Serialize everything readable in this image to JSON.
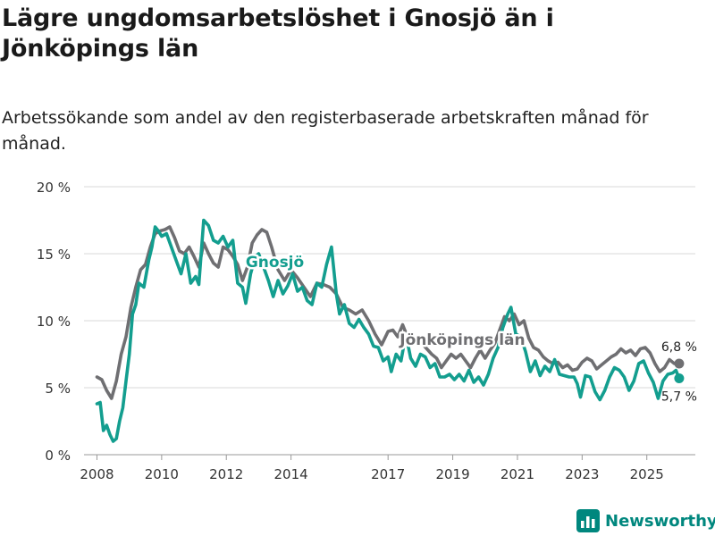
{
  "header": {
    "title": "Lägre ungdomsarbetslöshet i Gnosjö än i Jönköpings län",
    "subtitle": "Arbetssökande som andel av den registerbaserade arbetskraften månad för månad."
  },
  "brand": {
    "name": "Newsworthy"
  },
  "colors": {
    "gnosjo": "#139e8f",
    "lan": "#6f6f72",
    "grid": "#d9d9d9",
    "brand": "#00877e"
  },
  "chart_data": {
    "type": "line",
    "title": "Lägre ungdomsarbetslöshet i Gnosjö än i Jönköpings län",
    "xlabel": "",
    "ylabel": "",
    "xlim": [
      2007.6,
      2026.5
    ],
    "ylim": [
      0,
      20
    ],
    "yticks": [
      0,
      5,
      10,
      15,
      20
    ],
    "ytick_labels": [
      "0 %",
      "5 %",
      "10 %",
      "15 %",
      "20 %"
    ],
    "xticks": [
      2008,
      2010,
      2012,
      2014,
      2017,
      2019,
      2021,
      2023,
      2025
    ],
    "xtick_labels": [
      "2008",
      "2010",
      "2012",
      "2014",
      "2017",
      "2019",
      "2021",
      "2023",
      "2025"
    ],
    "series": [
      {
        "name": "Jönköpings län",
        "color": "#6f6f72",
        "end_label": "6,8 %",
        "points": [
          [
            2008.0,
            5.8
          ],
          [
            2008.15,
            5.6
          ],
          [
            2008.3,
            4.8
          ],
          [
            2008.45,
            4.2
          ],
          [
            2008.6,
            5.5
          ],
          [
            2008.75,
            7.5
          ],
          [
            2008.9,
            8.8
          ],
          [
            2009.05,
            11.0
          ],
          [
            2009.2,
            12.5
          ],
          [
            2009.35,
            13.8
          ],
          [
            2009.5,
            14.2
          ],
          [
            2009.65,
            15.5
          ],
          [
            2009.8,
            16.5
          ],
          [
            2009.95,
            16.7
          ],
          [
            2010.1,
            16.8
          ],
          [
            2010.25,
            17.0
          ],
          [
            2010.4,
            16.2
          ],
          [
            2010.55,
            15.2
          ],
          [
            2010.7,
            15.0
          ],
          [
            2010.85,
            15.5
          ],
          [
            2011.0,
            14.8
          ],
          [
            2011.15,
            14.0
          ],
          [
            2011.3,
            15.8
          ],
          [
            2011.45,
            15.0
          ],
          [
            2011.6,
            14.3
          ],
          [
            2011.75,
            14.0
          ],
          [
            2011.9,
            15.5
          ],
          [
            2012.05,
            15.3
          ],
          [
            2012.2,
            14.8
          ],
          [
            2012.35,
            14.2
          ],
          [
            2012.5,
            13.0
          ],
          [
            2012.65,
            14.0
          ],
          [
            2012.8,
            15.8
          ],
          [
            2012.95,
            16.4
          ],
          [
            2013.1,
            16.8
          ],
          [
            2013.25,
            16.6
          ],
          [
            2013.4,
            15.5
          ],
          [
            2013.6,
            13.8
          ],
          [
            2013.8,
            13.0
          ],
          [
            2014.0,
            13.8
          ],
          [
            2014.2,
            13.2
          ],
          [
            2014.4,
            12.5
          ],
          [
            2014.6,
            11.8
          ],
          [
            2014.8,
            12.8
          ],
          [
            2015.0,
            12.7
          ],
          [
            2015.2,
            12.5
          ],
          [
            2015.4,
            12.0
          ],
          [
            2015.6,
            11.0
          ],
          [
            2015.8,
            10.8
          ],
          [
            2016.0,
            10.5
          ],
          [
            2016.2,
            10.8
          ],
          [
            2016.4,
            10.0
          ],
          [
            2016.6,
            9.0
          ],
          [
            2016.8,
            8.2
          ],
          [
            2017.0,
            9.2
          ],
          [
            2017.15,
            9.3
          ],
          [
            2017.3,
            8.8
          ],
          [
            2017.45,
            9.7
          ],
          [
            2017.6,
            8.8
          ],
          [
            2017.75,
            8.2
          ],
          [
            2017.9,
            8.6
          ],
          [
            2018.05,
            8.3
          ],
          [
            2018.2,
            7.9
          ],
          [
            2018.35,
            7.5
          ],
          [
            2018.5,
            7.2
          ],
          [
            2018.65,
            6.5
          ],
          [
            2018.8,
            7.0
          ],
          [
            2018.95,
            7.5
          ],
          [
            2019.1,
            7.2
          ],
          [
            2019.25,
            7.5
          ],
          [
            2019.4,
            7.0
          ],
          [
            2019.55,
            6.5
          ],
          [
            2019.7,
            7.2
          ],
          [
            2019.85,
            7.8
          ],
          [
            2020.0,
            7.2
          ],
          [
            2020.15,
            7.8
          ],
          [
            2020.3,
            8.3
          ],
          [
            2020.45,
            9.3
          ],
          [
            2020.6,
            10.3
          ],
          [
            2020.75,
            10.0
          ],
          [
            2020.9,
            10.5
          ],
          [
            2021.05,
            9.7
          ],
          [
            2021.2,
            10.0
          ],
          [
            2021.35,
            8.7
          ],
          [
            2021.5,
            8.0
          ],
          [
            2021.65,
            7.8
          ],
          [
            2021.8,
            7.3
          ],
          [
            2021.95,
            7.0
          ],
          [
            2022.1,
            6.8
          ],
          [
            2022.25,
            6.9
          ],
          [
            2022.4,
            6.5
          ],
          [
            2022.55,
            6.7
          ],
          [
            2022.7,
            6.3
          ],
          [
            2022.85,
            6.4
          ],
          [
            2023.0,
            6.9
          ],
          [
            2023.15,
            7.2
          ],
          [
            2023.3,
            7.0
          ],
          [
            2023.45,
            6.4
          ],
          [
            2023.6,
            6.7
          ],
          [
            2023.75,
            7.0
          ],
          [
            2023.9,
            7.3
          ],
          [
            2024.05,
            7.5
          ],
          [
            2024.2,
            7.9
          ],
          [
            2024.35,
            7.6
          ],
          [
            2024.5,
            7.8
          ],
          [
            2024.65,
            7.4
          ],
          [
            2024.8,
            7.9
          ],
          [
            2024.95,
            8.0
          ],
          [
            2025.1,
            7.6
          ],
          [
            2025.25,
            6.8
          ],
          [
            2025.4,
            6.2
          ],
          [
            2025.55,
            6.5
          ],
          [
            2025.7,
            7.1
          ],
          [
            2025.85,
            6.8
          ],
          [
            2026.0,
            6.8
          ]
        ]
      },
      {
        "name": "Gnosjö",
        "color": "#139e8f",
        "end_label": "5,7 %",
        "points": [
          [
            2008.0,
            3.8
          ],
          [
            2008.1,
            3.9
          ],
          [
            2008.2,
            1.8
          ],
          [
            2008.3,
            2.2
          ],
          [
            2008.4,
            1.5
          ],
          [
            2008.5,
            1.0
          ],
          [
            2008.6,
            1.2
          ],
          [
            2008.7,
            2.5
          ],
          [
            2008.8,
            3.5
          ],
          [
            2008.9,
            5.5
          ],
          [
            2009.0,
            7.5
          ],
          [
            2009.1,
            10.5
          ],
          [
            2009.2,
            11.2
          ],
          [
            2009.3,
            12.8
          ],
          [
            2009.45,
            12.5
          ],
          [
            2009.6,
            14.5
          ],
          [
            2009.7,
            15.5
          ],
          [
            2009.8,
            17.0
          ],
          [
            2009.9,
            16.7
          ],
          [
            2010.0,
            16.3
          ],
          [
            2010.15,
            16.5
          ],
          [
            2010.3,
            15.5
          ],
          [
            2010.45,
            14.5
          ],
          [
            2010.6,
            13.5
          ],
          [
            2010.75,
            15.0
          ],
          [
            2010.9,
            12.8
          ],
          [
            2011.05,
            13.3
          ],
          [
            2011.15,
            12.7
          ],
          [
            2011.3,
            17.5
          ],
          [
            2011.45,
            17.1
          ],
          [
            2011.6,
            16.0
          ],
          [
            2011.75,
            15.8
          ],
          [
            2011.9,
            16.3
          ],
          [
            2012.05,
            15.5
          ],
          [
            2012.2,
            16.0
          ],
          [
            2012.35,
            12.8
          ],
          [
            2012.5,
            12.5
          ],
          [
            2012.6,
            11.3
          ],
          [
            2012.75,
            13.5
          ],
          [
            2012.9,
            14.8
          ],
          [
            2013.0,
            15.0
          ],
          [
            2013.15,
            14.0
          ],
          [
            2013.3,
            13.0
          ],
          [
            2013.45,
            11.8
          ],
          [
            2013.6,
            13.0
          ],
          [
            2013.75,
            12.0
          ],
          [
            2013.9,
            12.6
          ],
          [
            2014.05,
            13.5
          ],
          [
            2014.2,
            12.2
          ],
          [
            2014.35,
            12.5
          ],
          [
            2014.5,
            11.5
          ],
          [
            2014.65,
            11.2
          ],
          [
            2014.8,
            12.8
          ],
          [
            2014.95,
            12.5
          ],
          [
            2015.1,
            14.2
          ],
          [
            2015.25,
            15.5
          ],
          [
            2015.4,
            12.0
          ],
          [
            2015.5,
            10.5
          ],
          [
            2015.65,
            11.2
          ],
          [
            2015.8,
            9.8
          ],
          [
            2015.95,
            9.5
          ],
          [
            2016.1,
            10.1
          ],
          [
            2016.25,
            9.5
          ],
          [
            2016.4,
            9.0
          ],
          [
            2016.55,
            8.1
          ],
          [
            2016.7,
            8.0
          ],
          [
            2016.85,
            7.0
          ],
          [
            2017.0,
            7.3
          ],
          [
            2017.1,
            6.2
          ],
          [
            2017.25,
            7.5
          ],
          [
            2017.4,
            7.0
          ],
          [
            2017.55,
            9.0
          ],
          [
            2017.7,
            7.2
          ],
          [
            2017.85,
            6.6
          ],
          [
            2018.0,
            7.5
          ],
          [
            2018.15,
            7.3
          ],
          [
            2018.3,
            6.5
          ],
          [
            2018.45,
            6.8
          ],
          [
            2018.6,
            5.8
          ],
          [
            2018.75,
            5.8
          ],
          [
            2018.9,
            6.0
          ],
          [
            2019.05,
            5.6
          ],
          [
            2019.2,
            6.0
          ],
          [
            2019.35,
            5.5
          ],
          [
            2019.5,
            6.3
          ],
          [
            2019.65,
            5.4
          ],
          [
            2019.8,
            5.8
          ],
          [
            2019.95,
            5.2
          ],
          [
            2020.1,
            6.0
          ],
          [
            2020.25,
            7.2
          ],
          [
            2020.4,
            8.0
          ],
          [
            2020.55,
            9.5
          ],
          [
            2020.7,
            10.5
          ],
          [
            2020.8,
            11.0
          ],
          [
            2020.95,
            9.0
          ],
          [
            2021.1,
            8.8
          ],
          [
            2021.25,
            7.7
          ],
          [
            2021.4,
            6.2
          ],
          [
            2021.55,
            7.0
          ],
          [
            2021.7,
            5.9
          ],
          [
            2021.85,
            6.6
          ],
          [
            2022.0,
            6.2
          ],
          [
            2022.15,
            7.1
          ],
          [
            2022.3,
            6.0
          ],
          [
            2022.45,
            5.9
          ],
          [
            2022.6,
            5.8
          ],
          [
            2022.75,
            5.8
          ],
          [
            2022.85,
            5.3
          ],
          [
            2022.95,
            4.3
          ],
          [
            2023.1,
            5.9
          ],
          [
            2023.25,
            5.8
          ],
          [
            2023.4,
            4.7
          ],
          [
            2023.55,
            4.1
          ],
          [
            2023.7,
            4.8
          ],
          [
            2023.85,
            5.8
          ],
          [
            2024.0,
            6.5
          ],
          [
            2024.15,
            6.3
          ],
          [
            2024.3,
            5.8
          ],
          [
            2024.45,
            4.8
          ],
          [
            2024.6,
            5.5
          ],
          [
            2024.75,
            6.8
          ],
          [
            2024.9,
            7.0
          ],
          [
            2025.05,
            6.1
          ],
          [
            2025.2,
            5.4
          ],
          [
            2025.35,
            4.2
          ],
          [
            2025.5,
            5.5
          ],
          [
            2025.65,
            6.0
          ],
          [
            2025.8,
            6.1
          ],
          [
            2025.9,
            6.3
          ],
          [
            2026.0,
            5.7
          ]
        ]
      }
    ],
    "annotations": [
      {
        "series": "Gnosjö",
        "text": "Gnosjö",
        "x": 2013.5,
        "y": 14.4
      },
      {
        "series": "Jönköpings län",
        "text": "Jönköpings län",
        "x": 2019.3,
        "y": 8.6
      },
      {
        "series": "Jönköpings län",
        "text": "6,8 %",
        "x": 2026.0,
        "y": 6.8,
        "position": "above"
      },
      {
        "series": "Gnosjö",
        "text": "5,7 %",
        "x": 2026.0,
        "y": 5.7,
        "position": "below"
      }
    ]
  }
}
